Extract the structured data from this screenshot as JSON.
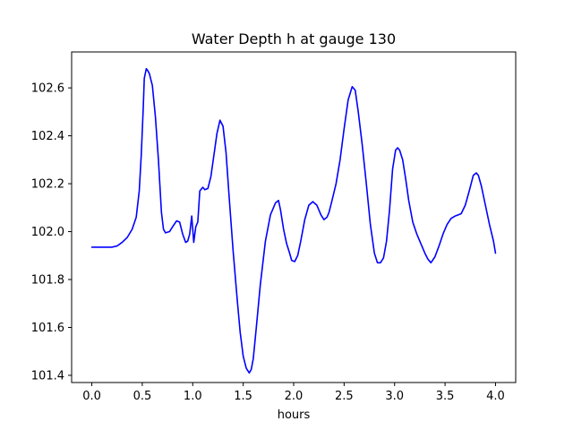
{
  "chart_data": {
    "type": "line",
    "title": "Water Depth h at gauge 130",
    "xlabel": "hours",
    "ylabel": "",
    "xlim": [
      -0.2,
      4.2
    ],
    "ylim": [
      101.37,
      102.75
    ],
    "xticks": [
      0.0,
      0.5,
      1.0,
      1.5,
      2.0,
      2.5,
      3.0,
      3.5,
      4.0
    ],
    "xtick_labels": [
      "0.0",
      "0.5",
      "1.0",
      "1.5",
      "2.0",
      "2.5",
      "3.0",
      "3.5",
      "4.0"
    ],
    "yticks": [
      101.4,
      101.6,
      101.8,
      102.0,
      102.2,
      102.4,
      102.6
    ],
    "ytick_labels": [
      "101.4",
      "101.6",
      "101.8",
      "102.0",
      "102.2",
      "102.4",
      "102.6"
    ],
    "grid": false,
    "series": [
      {
        "color": "#0000ff",
        "x": [
          0.0,
          0.1,
          0.2,
          0.25,
          0.3,
          0.35,
          0.4,
          0.44,
          0.47,
          0.49,
          0.5,
          0.51,
          0.52,
          0.54,
          0.55,
          0.57,
          0.6,
          0.63,
          0.66,
          0.69,
          0.71,
          0.73,
          0.77,
          0.8,
          0.84,
          0.87,
          0.9,
          0.93,
          0.95,
          0.97,
          0.99,
          1.01,
          1.03,
          1.05,
          1.07,
          1.09,
          1.1,
          1.12,
          1.15,
          1.18,
          1.21,
          1.24,
          1.27,
          1.3,
          1.33,
          1.36,
          1.4,
          1.44,
          1.47,
          1.5,
          1.53,
          1.56,
          1.58,
          1.6,
          1.63,
          1.67,
          1.72,
          1.77,
          1.82,
          1.85,
          1.87,
          1.9,
          1.93,
          1.96,
          1.98,
          2.01,
          2.04,
          2.07,
          2.11,
          2.15,
          2.19,
          2.23,
          2.27,
          2.3,
          2.33,
          2.35,
          2.38,
          2.42,
          2.46,
          2.5,
          2.54,
          2.58,
          2.61,
          2.64,
          2.68,
          2.72,
          2.76,
          2.8,
          2.83,
          2.86,
          2.89,
          2.92,
          2.95,
          2.98,
          3.01,
          3.03,
          3.05,
          3.08,
          3.11,
          3.14,
          3.18,
          3.22,
          3.26,
          3.3,
          3.33,
          3.36,
          3.4,
          3.44,
          3.48,
          3.52,
          3.56,
          3.6,
          3.63,
          3.66,
          3.7,
          3.74,
          3.78,
          3.81,
          3.83,
          3.86,
          3.9,
          3.94,
          3.98,
          4.0
        ],
        "y": [
          101.935,
          101.935,
          101.935,
          101.94,
          101.955,
          101.975,
          102.01,
          102.06,
          102.17,
          102.32,
          102.42,
          102.52,
          102.64,
          102.68,
          102.675,
          102.66,
          102.61,
          102.48,
          102.3,
          102.08,
          102.01,
          101.995,
          102.0,
          102.02,
          102.045,
          102.04,
          101.99,
          101.955,
          101.96,
          101.99,
          102.065,
          101.955,
          102.02,
          102.04,
          102.17,
          102.18,
          102.185,
          102.175,
          102.18,
          102.23,
          102.32,
          102.41,
          102.465,
          102.44,
          102.33,
          102.15,
          101.92,
          101.72,
          101.58,
          101.48,
          101.43,
          101.41,
          101.425,
          101.47,
          101.6,
          101.78,
          101.96,
          102.07,
          102.12,
          102.13,
          102.09,
          102.01,
          101.95,
          101.91,
          101.88,
          101.875,
          101.9,
          101.96,
          102.05,
          102.11,
          102.125,
          102.11,
          102.07,
          102.05,
          102.06,
          102.08,
          102.13,
          102.2,
          102.3,
          102.43,
          102.55,
          102.605,
          102.59,
          102.5,
          102.36,
          102.2,
          102.03,
          101.91,
          101.87,
          101.87,
          101.89,
          101.96,
          102.09,
          102.26,
          102.34,
          102.35,
          102.34,
          102.3,
          102.22,
          102.13,
          102.04,
          101.99,
          101.95,
          101.91,
          101.885,
          101.87,
          101.895,
          101.94,
          101.99,
          102.03,
          102.055,
          102.065,
          102.07,
          102.075,
          102.11,
          102.17,
          102.235,
          102.245,
          102.235,
          102.19,
          102.11,
          102.03,
          101.96,
          101.91
        ]
      }
    ]
  }
}
